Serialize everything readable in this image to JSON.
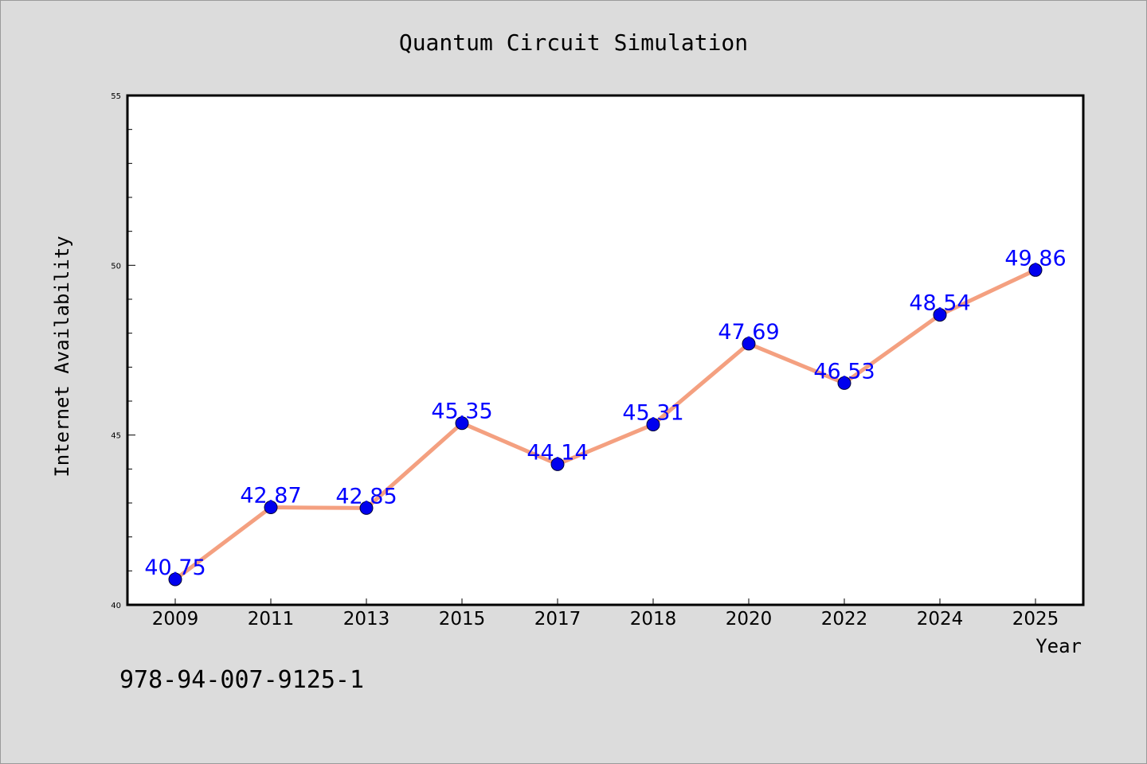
{
  "chart_data": {
    "type": "line",
    "title": "Quantum Circuit Simulation",
    "xlabel": "Year",
    "ylabel": "Internet Availability",
    "categories": [
      "2009",
      "2011",
      "2013",
      "2015",
      "2017",
      "2018",
      "2020",
      "2022",
      "2024",
      "2025"
    ],
    "series": [
      {
        "values": [
          40.75,
          42.87,
          42.85,
          45.35,
          44.14,
          45.31,
          47.69,
          46.53,
          48.54,
          49.86
        ],
        "labels": [
          "40.75",
          "42.87",
          "42.85",
          "45.35",
          "44.14",
          "45.31",
          "47.69",
          "46.53",
          "48.54",
          "49.86"
        ]
      }
    ],
    "ylim": [
      40,
      55
    ],
    "yticks": [
      40,
      45,
      50,
      55
    ],
    "grid": false,
    "colors": {
      "line": "#f4a080",
      "marker": "#0000ee",
      "label": "#0000ff",
      "background": "#dcdcdc",
      "plot_background": "#ffffff"
    }
  },
  "footer": {
    "isbn": "978-94-007-9125-1"
  }
}
